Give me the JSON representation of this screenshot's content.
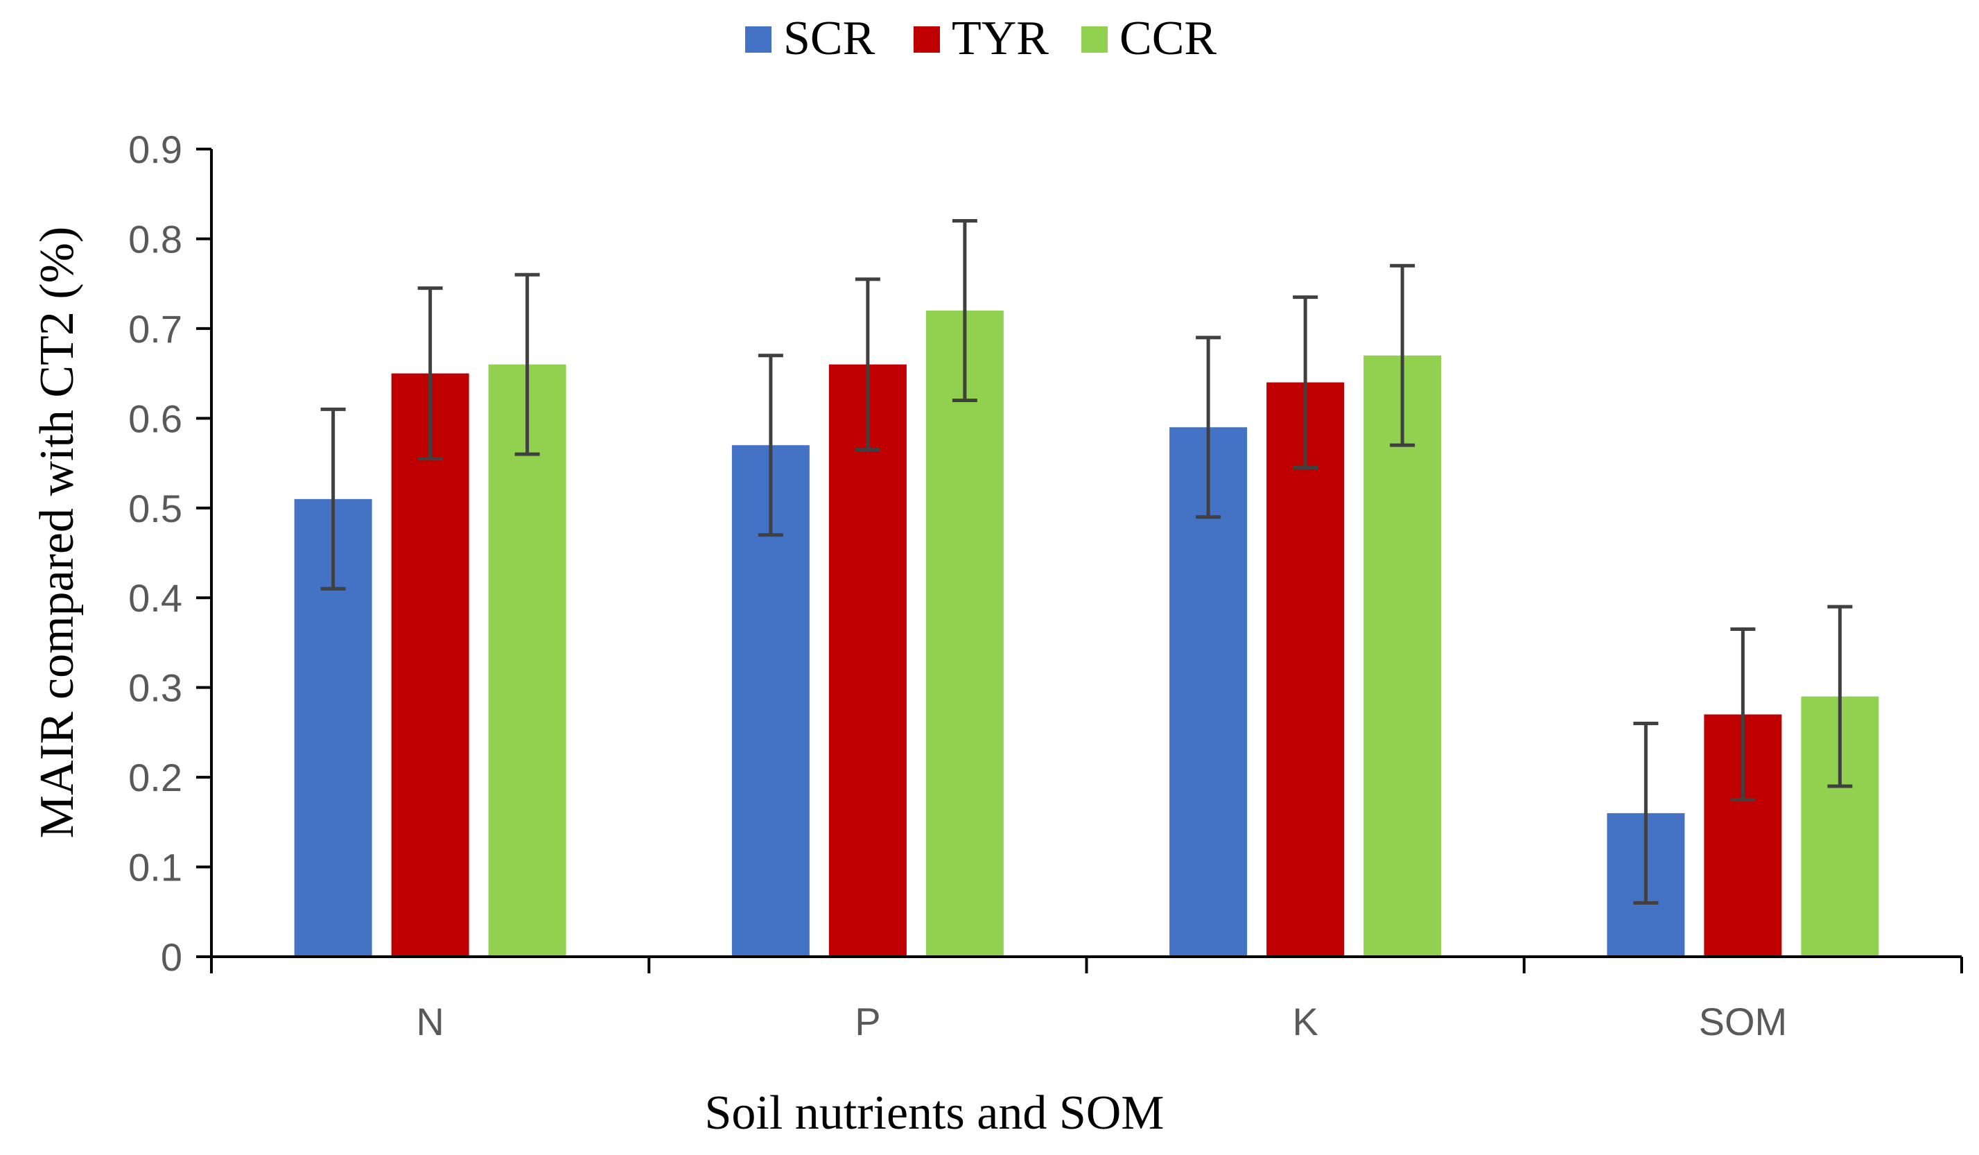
{
  "chart_data": {
    "type": "bar",
    "title": "",
    "xlabel": "Soil nutrients and SOM",
    "ylabel": "MAIR compared with CT2 (%)",
    "categories": [
      "N",
      "P",
      "K",
      "SOM"
    ],
    "ylim": [
      0,
      0.9
    ],
    "yticks": [
      "0",
      "0.1",
      "0.2",
      "0.3",
      "0.4",
      "0.5",
      "0.6",
      "0.7",
      "0.8",
      "0.9"
    ],
    "grid": false,
    "legend_position": "top-center",
    "series": [
      {
        "name": "SCR",
        "color": "#4472C4",
        "values": [
          0.51,
          0.57,
          0.59,
          0.16
        ],
        "errors": [
          0.1,
          0.1,
          0.1,
          0.1
        ]
      },
      {
        "name": "TYR",
        "color": "#C00000",
        "values": [
          0.65,
          0.66,
          0.64,
          0.27
        ],
        "errors": [
          0.095,
          0.095,
          0.095,
          0.095
        ]
      },
      {
        "name": "CCR",
        "color": "#92D050",
        "values": [
          0.66,
          0.72,
          0.67,
          0.29
        ],
        "errors": [
          0.1,
          0.1,
          0.1,
          0.1
        ]
      }
    ]
  }
}
